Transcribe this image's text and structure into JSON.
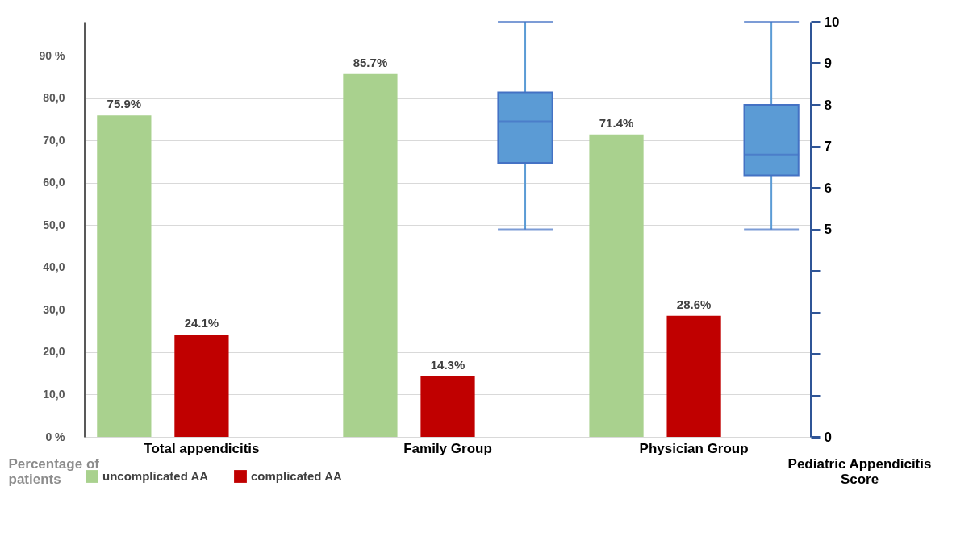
{
  "chart_data": {
    "type": "bar",
    "categories": [
      "Total appendicitis",
      "Family Group",
      "Physician Group"
    ],
    "series": [
      {
        "name": "uncomplicated AA",
        "color": "#a9d18e",
        "values": [
          75.9,
          85.7,
          71.4
        ],
        "value_labels": [
          "75.9%",
          "85.7%",
          "71.4%"
        ]
      },
      {
        "name": "complicated AA",
        "color": "#c00000",
        "values": [
          24.1,
          14.3,
          28.6
        ],
        "value_labels": [
          "24.1%",
          "14.3%",
          "28.6%"
        ]
      },
      {
        "type": "box",
        "axis": "y2",
        "color": "#5b9bd5",
        "boxes": [
          null,
          {
            "low": 5,
            "q1": 6.6,
            "median": 7.6,
            "q3": 8.3,
            "high": 10
          },
          {
            "low": 5,
            "q1": 6.3,
            "median": 6.8,
            "q3": 8,
            "high": 10
          }
        ]
      }
    ],
    "ylabel": "Percentage of patients",
    "y2label": "Pediatric Appendicitis Score",
    "ylim": [
      0,
      98
    ],
    "yticks": [
      {
        "value": 0,
        "label": "0 %"
      },
      {
        "value": 10,
        "label": "10,0"
      },
      {
        "value": 20,
        "label": "20,0"
      },
      {
        "value": 30,
        "label": "30,0"
      },
      {
        "value": 40,
        "label": "40,0"
      },
      {
        "value": 50,
        "label": "50,0"
      },
      {
        "value": 60,
        "label": "60,0"
      },
      {
        "value": 70,
        "label": "70,0"
      },
      {
        "value": 80,
        "label": "80,0"
      },
      {
        "value": 90,
        "label": "90 %"
      }
    ],
    "y2lim": [
      0,
      10
    ],
    "y2ticks": [
      0,
      {
        "value": 1,
        "label": null
      },
      {
        "value": 2,
        "label": null
      },
      {
        "value": 3,
        "label": null
      },
      {
        "value": 4,
        "label": null
      },
      5,
      6,
      7,
      8,
      9,
      10
    ],
    "grid": "y",
    "legend": "bottom"
  }
}
